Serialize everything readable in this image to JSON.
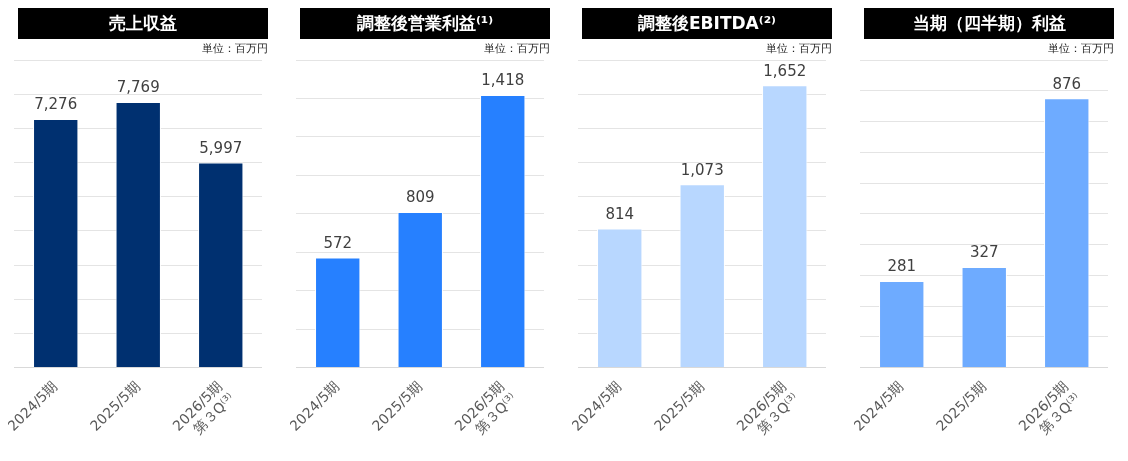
{
  "chart_data": [
    {
      "type": "bar",
      "title": "売上収益",
      "subtitle": "単位：百万円",
      "categories": [
        "2024/5期",
        "2025/5期",
        "2026/5期\n第３Q⁽³⁾"
      ],
      "values": [
        7276,
        7769,
        5997
      ],
      "value_labels": [
        "7,276",
        "7,769",
        "5,997"
      ],
      "color": "#003070",
      "grid": "y",
      "tick_labels": "x"
    },
    {
      "type": "bar",
      "title": "調整後営業利益⁽¹⁾",
      "subtitle": "単位：百万円",
      "categories": [
        "2024/5期",
        "2025/5期",
        "2026/5期\n第３Q⁽³⁾"
      ],
      "values": [
        572,
        809,
        1418
      ],
      "value_labels": [
        "572",
        "809",
        "1,418"
      ],
      "color": "#2680ff",
      "grid": "y",
      "tick_labels": "x"
    },
    {
      "type": "bar",
      "title": "調整後EBITDA⁽²⁾",
      "subtitle": "単位：百万円",
      "categories": [
        "2024/5期",
        "2025/5期",
        "2026/5期\n第３Q⁽³⁾"
      ],
      "values": [
        814,
        1073,
        1652
      ],
      "value_labels": [
        "814",
        "1,073",
        "1,652"
      ],
      "color": "#b8d7ff",
      "grid": "y",
      "tick_labels": "x"
    },
    {
      "type": "bar",
      "title": "当期（四半期）利益",
      "subtitle": "単位：百万円",
      "categories": [
        "2024/5期",
        "2025/5期",
        "2026/5期\n第３Q⁽³⁾"
      ],
      "values": [
        281,
        327,
        876
      ],
      "value_labels": [
        "281",
        "327",
        "876"
      ],
      "color": "#6eabff",
      "grid": "y",
      "tick_labels": "x"
    }
  ]
}
